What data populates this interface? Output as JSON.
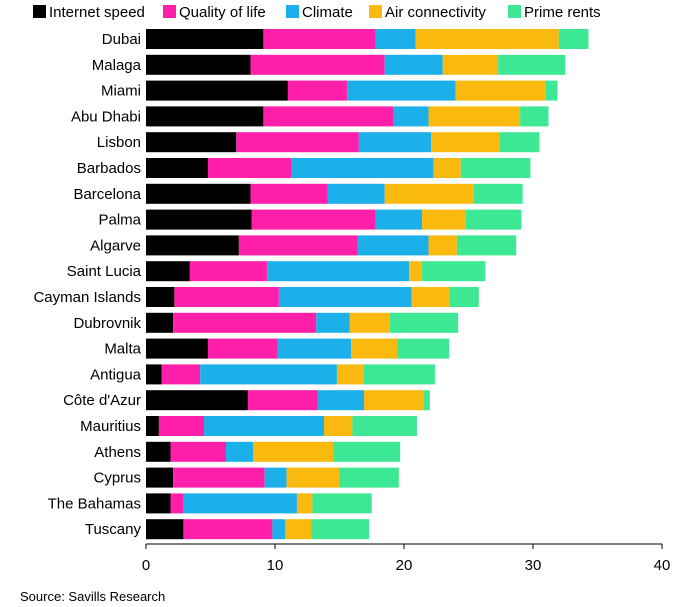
{
  "chart_data": {
    "type": "bar",
    "orientation": "horizontal",
    "stacked": true,
    "categories": [
      "Dubai",
      "Malaga",
      "Miami",
      "Abu Dhabi",
      "Lisbon",
      "Barbados",
      "Barcelona",
      "Palma",
      "Algarve",
      "Saint Lucia",
      "Cayman Islands",
      "Dubrovnik",
      "Malta",
      "Antigua",
      "Côte d'Azur",
      "Mauritius",
      "Athens",
      "Cyprus",
      "The Bahamas",
      "Tuscany"
    ],
    "series": [
      {
        "name": "Internet speed",
        "color": "#000000",
        "values": [
          9.1,
          8.1,
          11.0,
          9.1,
          7.0,
          4.8,
          8.1,
          8.2,
          7.2,
          3.4,
          2.2,
          2.1,
          4.8,
          1.2,
          7.9,
          1.0,
          1.9,
          2.1,
          1.9,
          2.9
        ]
      },
      {
        "name": "Quality of life",
        "color": "#ff1fa9",
        "values": [
          8.7,
          10.4,
          4.6,
          10.1,
          9.5,
          6.5,
          6.0,
          9.6,
          9.2,
          6.0,
          8.1,
          11.1,
          5.4,
          3.0,
          5.4,
          3.5,
          4.3,
          7.1,
          1.0,
          6.9
        ]
      },
      {
        "name": "Climate",
        "color": "#1cb0ea",
        "values": [
          3.1,
          4.5,
          8.4,
          2.7,
          5.6,
          11.0,
          4.4,
          3.6,
          5.5,
          11.0,
          10.3,
          2.6,
          5.7,
          10.6,
          3.6,
          9.3,
          2.1,
          1.7,
          8.8,
          1.0
        ]
      },
      {
        "name": "Air connectivity",
        "color": "#f9b90e",
        "values": [
          11.1,
          4.3,
          7.0,
          7.1,
          5.3,
          2.1,
          6.9,
          3.4,
          2.2,
          1.0,
          2.9,
          3.1,
          3.6,
          2.1,
          4.6,
          2.2,
          6.2,
          4.1,
          1.2,
          2.0
        ]
      },
      {
        "name": "Prime rents",
        "color": "#3de895",
        "values": [
          2.3,
          5.2,
          0.9,
          2.2,
          3.1,
          5.4,
          3.8,
          4.3,
          4.6,
          4.9,
          2.3,
          5.3,
          4.0,
          5.5,
          0.5,
          5.0,
          5.2,
          4.6,
          4.6,
          4.5
        ]
      }
    ],
    "xticks": [
      0,
      10,
      20,
      30,
      40
    ],
    "xlim": [
      0,
      40
    ],
    "legend_position": "top-left",
    "grid": false
  },
  "source": "Source: Savills Research"
}
